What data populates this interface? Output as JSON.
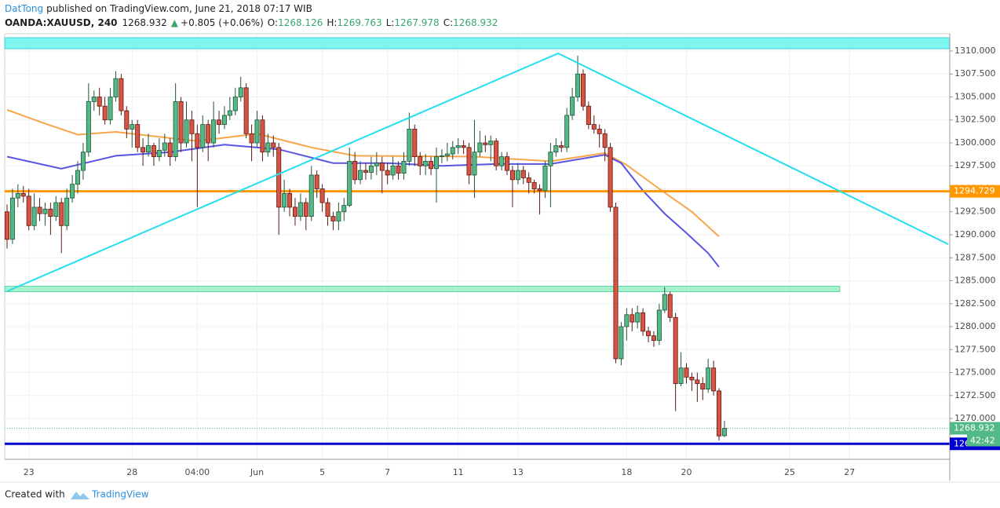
{
  "header": {
    "author": "DatTong",
    "published": "published on TradingView.com, June 21, 2018 07:17 WIB",
    "symbol": "OANDA:XAUUSD, 240",
    "arrow": "▲",
    "change": "+0.805 (+0.06%)",
    "o": "O:",
    "h": "H:",
    "l": "L:",
    "c": "C:"
  },
  "footer": {
    "created": "Created with",
    "brand": "TradingView"
  },
  "chart_data": {
    "type": "candlestick",
    "up_color": "#53b987",
    "up_border": "#225437",
    "down_color": "#d75442",
    "down_border": "#5b1a13",
    "grid": true,
    "ylim": [
      1265.556,
      1311.88
    ],
    "yticks": [
      {
        "value": 1267.5,
        "label": "1267.500"
      },
      {
        "value": 1270,
        "label": "1270.000"
      },
      {
        "value": 1272.5,
        "label": "1272.500"
      },
      {
        "value": 1275,
        "label": "1275.000"
      },
      {
        "value": 1277.5,
        "label": "1277.500"
      },
      {
        "value": 1280,
        "label": "1280.000"
      },
      {
        "value": 1282.5,
        "label": "1282.500"
      },
      {
        "value": 1285,
        "label": "1285.000"
      },
      {
        "value": 1287.5,
        "label": "1287.500"
      },
      {
        "value": 1290,
        "label": "1290.000"
      },
      {
        "value": 1292.5,
        "label": "1292.500"
      },
      {
        "value": 1295,
        "label": "1295.000"
      },
      {
        "value": 1297.5,
        "label": "1297.500"
      },
      {
        "value": 1300,
        "label": "1300.000"
      },
      {
        "value": 1302.5,
        "label": "1302.500"
      },
      {
        "value": 1305,
        "label": "1305.000"
      },
      {
        "value": 1307.5,
        "label": "1307.500"
      },
      {
        "value": 1310,
        "label": "1310.000"
      }
    ],
    "categories": [
      null,
      null,
      null,
      null,
      "23",
      null,
      null,
      null,
      null,
      null,
      null,
      null,
      null,
      null,
      null,
      null,
      null,
      null,
      null,
      null,
      null,
      null,
      null,
      "28",
      null,
      null,
      null,
      null,
      null,
      null,
      null,
      null,
      null,
      null,
      null,
      "04:00",
      null,
      null,
      null,
      null,
      null,
      null,
      null,
      null,
      null,
      null,
      "Jun",
      null,
      null,
      null,
      null,
      null,
      null,
      null,
      null,
      null,
      null,
      null,
      "5",
      null,
      null,
      null,
      null,
      null,
      null,
      null,
      null,
      null,
      null,
      null,
      "7",
      null,
      null,
      null,
      null,
      null,
      null,
      null,
      null,
      null,
      null,
      null,
      null,
      "11",
      null,
      null,
      null,
      null,
      null,
      null,
      null,
      null,
      null,
      null,
      "13",
      null,
      null,
      null,
      null,
      null,
      null,
      null,
      null,
      null,
      null,
      null,
      null,
      null,
      null,
      null,
      null,
      null,
      null,
      null,
      "18",
      null,
      null,
      null,
      null,
      null,
      null,
      null,
      null,
      null,
      null,
      "20",
      null,
      null,
      null,
      null,
      null,
      null,
      null,
      null,
      null,
      null,
      null,
      null,
      null,
      null,
      null,
      null,
      null,
      null,
      "25",
      null,
      null,
      null,
      null,
      null,
      null,
      null,
      null,
      null,
      null,
      "27",
      null,
      null,
      null,
      null,
      null,
      null,
      null,
      null,
      null,
      null,
      null,
      null,
      null,
      null,
      null,
      null,
      null,
      null
    ],
    "open": [
      1292.5,
      1289.5,
      1294.0,
      1294.5,
      1294.2,
      1291.0,
      1293.0,
      1292.3,
      1292.8,
      1292.0,
      1293.5,
      1291.0,
      1294.0,
      1295.5,
      1297.0,
      1299.0,
      1304.5,
      1305.0,
      1304.0,
      1302.5,
      1305.0,
      1307.0,
      1303.5,
      1301.5,
      1302.0,
      1299.5,
      1299.0,
      1299.7,
      1298.5,
      1299.2,
      1300.0,
      1298.5,
      1304.5,
      1300.0,
      1302.5,
      1301.0,
      1299.5,
      1302.0,
      1300.0,
      1302.5,
      1302.0,
      1303.0,
      1303.5,
      1305.0,
      1306.0,
      1301.0,
      1300.0,
      1302.5,
      1299.0,
      1300.0,
      1299.5,
      1293.0,
      1294.5,
      1293.0,
      1292.0,
      1293.5,
      1292.0,
      1296.5,
      1295.0,
      1293.5,
      1292.0,
      1291.5,
      1292.5,
      1293.2,
      1298.0,
      1296.0,
      1297.0,
      1296.8,
      1297.5,
      1297.8,
      1297.0,
      1296.5,
      1297.5,
      1296.7,
      1298.0,
      1301.5,
      1298.5,
      1297.5,
      1298.0,
      1297.2,
      1298.5,
      1298.6,
      1298.8,
      1299.5,
      1299.7,
      1299.5,
      1296.5,
      1299.0,
      1300.0,
      1299.8,
      1300.2,
      1297.5,
      1298.5,
      1297.0,
      1296.0,
      1297.0,
      1296.2,
      1295.7,
      1295.0,
      1294.8,
      1297.5,
      1299.0,
      1299.7,
      1299.5,
      1303.0,
      1305.0,
      1307.5,
      1304.0,
      1302.0,
      1301.5,
      1301.0,
      1299.5,
      1293.0,
      1276.5,
      1280.0,
      1281.3,
      1280.5,
      1281.5,
      1279.5,
      1279.0,
      1278.5,
      1281.8,
      1283.5,
      1281.0,
      1273.8,
      1275.5,
      1274.5,
      1274.2,
      1273.8,
      1273.2,
      1275.5,
      1273.0,
      1268.126,
      null,
      null,
      null,
      null,
      null,
      null,
      null,
      null,
      null,
      null,
      null,
      null,
      null,
      null,
      null,
      null,
      null,
      null,
      null,
      null,
      null,
      null,
      null,
      null,
      null,
      null,
      null,
      null,
      null,
      null,
      null,
      null,
      null,
      null,
      null,
      null,
      null,
      null,
      null,
      null,
      null
    ],
    "high": [
      1293.3,
      1295.0,
      1295.5,
      1295.3,
      1295.0,
      1294.5,
      1294.0,
      1293.5,
      1293.5,
      1294.2,
      1294.0,
      1295.0,
      1296.5,
      1298.0,
      1300.0,
      1306.5,
      1305.7,
      1306.0,
      1305.0,
      1306.0,
      1307.8,
      1307.5,
      1304.0,
      1302.5,
      1302.5,
      1300.5,
      1301.0,
      1300.0,
      1300.5,
      1301.0,
      1300.5,
      1306.5,
      1305.0,
      1304.5,
      1303.5,
      1302.0,
      1303.0,
      1302.5,
      1304.5,
      1303.5,
      1304.0,
      1305.0,
      1306.0,
      1307.2,
      1306.5,
      1302.0,
      1303.5,
      1303.0,
      1301.0,
      1300.8,
      1300.0,
      1296.0,
      1295.0,
      1294.0,
      1294.5,
      1294.0,
      1297.5,
      1297.0,
      1295.5,
      1294.0,
      1292.5,
      1293.5,
      1294.0,
      1299.5,
      1299.0,
      1298.0,
      1297.8,
      1298.5,
      1299.0,
      1298.5,
      1297.8,
      1298.5,
      1298.0,
      1299.0,
      1303.3,
      1302.0,
      1299.0,
      1298.8,
      1298.5,
      1299.5,
      1299.3,
      1300.0,
      1300.2,
      1300.5,
      1300.3,
      1300.0,
      1302.5,
      1301.3,
      1300.8,
      1300.8,
      1300.5,
      1299.0,
      1299.0,
      1297.5,
      1297.8,
      1297.5,
      1296.8,
      1296.0,
      1295.5,
      1298.0,
      1300.0,
      1300.5,
      1300.2,
      1303.8,
      1306.0,
      1309.5,
      1308.0,
      1304.5,
      1303.0,
      1302.0,
      1301.5,
      1300.0,
      1293.5,
      1280.5,
      1282.0,
      1282.0,
      1282.3,
      1282.0,
      1280.0,
      1279.5,
      1282.5,
      1284.3,
      1283.8,
      1281.5,
      1277.2,
      1276.0,
      1275.0,
      1275.0,
      1274.5,
      1276.5,
      1276.3,
      1273.3,
      1269.763,
      null,
      null,
      null,
      null,
      null,
      null,
      null,
      null,
      null,
      null,
      null,
      null,
      null,
      null,
      null,
      null,
      null,
      null,
      null,
      null,
      null,
      null,
      null,
      null,
      null,
      null,
      null,
      null,
      null,
      null,
      null,
      null,
      null,
      null,
      null,
      null,
      null,
      null,
      null,
      null,
      null
    ],
    "low": [
      1288.5,
      1289.0,
      1293.0,
      1293.5,
      1290.5,
      1290.5,
      1291.5,
      1291.0,
      1290.0,
      1291.5,
      1288.0,
      1290.5,
      1293.5,
      1294.5,
      1296.0,
      1298.5,
      1303.5,
      1303.0,
      1302.0,
      1302.0,
      1304.5,
      1303.0,
      1300.5,
      1299.5,
      1299.0,
      1297.5,
      1298.5,
      1297.5,
      1298.0,
      1298.5,
      1297.5,
      1298.0,
      1299.0,
      1299.5,
      1298.0,
      1293.0,
      1299.0,
      1298.0,
      1299.5,
      1301.0,
      1301.5,
      1302.5,
      1303.0,
      1304.5,
      1300.5,
      1298.0,
      1299.5,
      1298.0,
      1298.5,
      1298.5,
      1290.0,
      1292.5,
      1292.0,
      1291.0,
      1291.5,
      1290.5,
      1291.5,
      1294.0,
      1292.5,
      1291.0,
      1290.5,
      1290.5,
      1291.5,
      1293.0,
      1295.5,
      1295.5,
      1296.0,
      1296.0,
      1296.5,
      1294.5,
      1295.5,
      1296.0,
      1296.0,
      1296.0,
      1297.5,
      1297.5,
      1296.5,
      1296.5,
      1296.5,
      1293.5,
      1297.8,
      1298.0,
      1298.2,
      1298.8,
      1298.8,
      1295.5,
      1294.0,
      1298.5,
      1299.0,
      1298.0,
      1297.0,
      1297.0,
      1296.5,
      1293.0,
      1295.5,
      1295.5,
      1294.5,
      1294.5,
      1292.2,
      1294.0,
      1293.0,
      1298.5,
      1299.0,
      1299.0,
      1302.5,
      1304.5,
      1303.5,
      1301.5,
      1301.0,
      1299.5,
      1298.0,
      1292.5,
      1276.0,
      1275.8,
      1278.5,
      1279.5,
      1279.8,
      1279.0,
      1278.3,
      1277.8,
      1278.0,
      1281.5,
      1280.5,
      1270.8,
      1273.5,
      1273.8,
      1273.0,
      1271.8,
      1272.0,
      1272.8,
      1272.5,
      1267.6,
      1267.978,
      null,
      null,
      null,
      null,
      null,
      null,
      null,
      null,
      null,
      null,
      null,
      null,
      null,
      null,
      null,
      null,
      null,
      null,
      null,
      null,
      null,
      null,
      null,
      null,
      null,
      null,
      null,
      null,
      null,
      null,
      null,
      null,
      null,
      null,
      null,
      null,
      null,
      null,
      null,
      null,
      null
    ],
    "close": [
      1289.5,
      1294.0,
      1294.5,
      1294.2,
      1291.0,
      1293.0,
      1292.3,
      1292.8,
      1292.0,
      1293.5,
      1291.0,
      1294.0,
      1295.5,
      1297.0,
      1299.0,
      1304.5,
      1305.0,
      1304.0,
      1302.5,
      1305.0,
      1307.0,
      1303.5,
      1301.5,
      1302.0,
      1299.5,
      1299.0,
      1299.7,
      1298.5,
      1299.2,
      1300.0,
      1298.5,
      1304.5,
      1300.0,
      1302.5,
      1301.0,
      1299.5,
      1302.0,
      1300.0,
      1302.5,
      1302.0,
      1303.0,
      1303.5,
      1305.0,
      1306.0,
      1301.0,
      1300.0,
      1302.5,
      1299.0,
      1300.0,
      1299.5,
      1293.0,
      1294.5,
      1293.0,
      1292.0,
      1293.5,
      1292.0,
      1296.5,
      1295.0,
      1293.5,
      1292.0,
      1291.5,
      1292.5,
      1293.2,
      1298.0,
      1296.0,
      1297.0,
      1296.8,
      1297.5,
      1297.8,
      1297.0,
      1296.5,
      1297.5,
      1296.7,
      1298.0,
      1301.5,
      1298.5,
      1297.5,
      1298.0,
      1297.2,
      1298.5,
      1298.6,
      1298.8,
      1299.5,
      1299.7,
      1299.5,
      1296.5,
      1299.0,
      1300.0,
      1299.8,
      1300.2,
      1297.5,
      1298.5,
      1297.0,
      1296.0,
      1297.0,
      1296.2,
      1295.7,
      1295.0,
      1294.8,
      1297.5,
      1299.0,
      1299.7,
      1299.5,
      1303.0,
      1305.0,
      1307.5,
      1304.0,
      1302.0,
      1301.5,
      1301.0,
      1299.5,
      1293.0,
      1276.5,
      1280.0,
      1281.3,
      1280.5,
      1281.5,
      1279.5,
      1279.0,
      1278.5,
      1281.8,
      1283.5,
      1281.0,
      1273.8,
      1275.5,
      1274.5,
      1274.2,
      1273.8,
      1273.2,
      1275.5,
      1273.0,
      1268.1,
      1268.932,
      null,
      null,
      null,
      null,
      null,
      null,
      null,
      null,
      null,
      null,
      null,
      null,
      null,
      null,
      null,
      null,
      null,
      null,
      null,
      null,
      null,
      null,
      null,
      null,
      null,
      null,
      null,
      null,
      null,
      null,
      null,
      null,
      null,
      null,
      null,
      null,
      null,
      null,
      null,
      null,
      null
    ],
    "last_index": 132,
    "countdown": "42:42",
    "moving_averages": [
      {
        "color": "#f7a64c",
        "x": [
          0,
          7,
          13,
          20,
          35,
          46,
          56,
          64,
          86,
          100,
          110,
          114,
          120,
          126,
          131
        ],
        "values": [
          1303.6,
          1302.1,
          1300.9,
          1301.2,
          1300.2,
          1301.0,
          1299.5,
          1298.6,
          1298.5,
          1298.0,
          1298.9,
          1297.6,
          1295.0,
          1292.5,
          1289.8
        ]
      },
      {
        "color": "#5a55e0",
        "x": [
          0,
          10,
          20,
          30,
          40,
          50,
          60,
          70,
          80,
          90,
          100,
          110,
          113,
          117,
          121,
          125,
          129,
          131
        ],
        "values": [
          1298.5,
          1297.2,
          1298.6,
          1299.0,
          1299.8,
          1299.3,
          1297.8,
          1297.8,
          1297.5,
          1297.7,
          1297.7,
          1298.7,
          1297.8,
          1294.8,
          1292.3,
          1290.2,
          1288.0,
          1286.5
        ]
      }
    ],
    "zones": [
      {
        "range": [
          1310.25,
          1311.45
        ],
        "x": [
          -0.4,
          173.4
        ],
        "fill": "#7ff5f0",
        "stroke": "#3cd6e0"
      },
      {
        "range": [
          1283.8,
          1284.4
        ],
        "x": [
          -0.4,
          153.2
        ],
        "fill": "#a6f2cf",
        "stroke": "#62d8a2"
      }
    ],
    "levels": [
      {
        "value": 1294.729,
        "color": "#ff9800"
      },
      {
        "value": 1267.242,
        "color": "#0000d0"
      }
    ],
    "trend_line": {
      "color": "#22dff0",
      "x": [
        0,
        101.4,
        173.2
      ],
      "values": [
        1283.85,
        1309.74,
        1288.97
      ]
    }
  }
}
